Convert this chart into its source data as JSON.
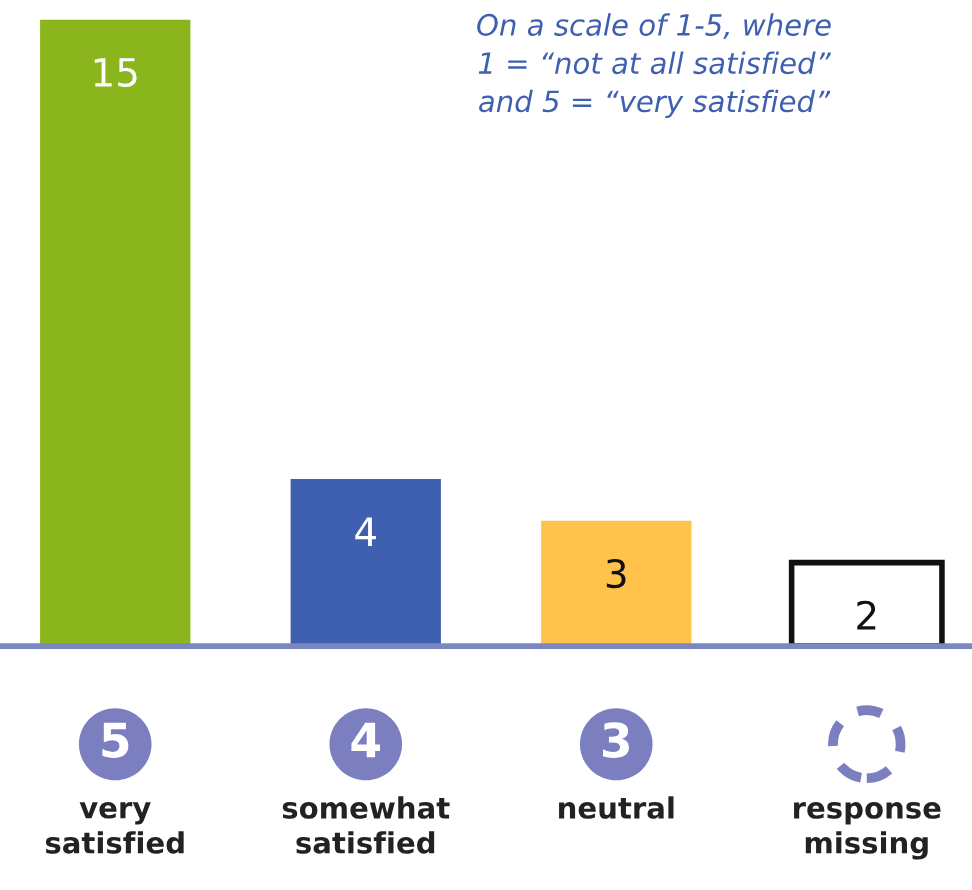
{
  "chart_data": {
    "type": "bar",
    "categories": [
      "very\nsatisfied",
      "somewhat\nsatisfied",
      "neutral",
      "response\nmissing"
    ],
    "values": [
      15,
      4,
      3,
      2
    ],
    "colors": [
      "#8ab51d",
      "#3f5fb0",
      "#ffc24a",
      "#ffffff"
    ],
    "data_labels": true,
    "annotations": [
      "On a scale of 1-5, where\n1 = “not at all satisfied”\nand 5 = “very satisfied”",
      "5",
      "4",
      "3"
    ],
    "legend": false
  }
}
